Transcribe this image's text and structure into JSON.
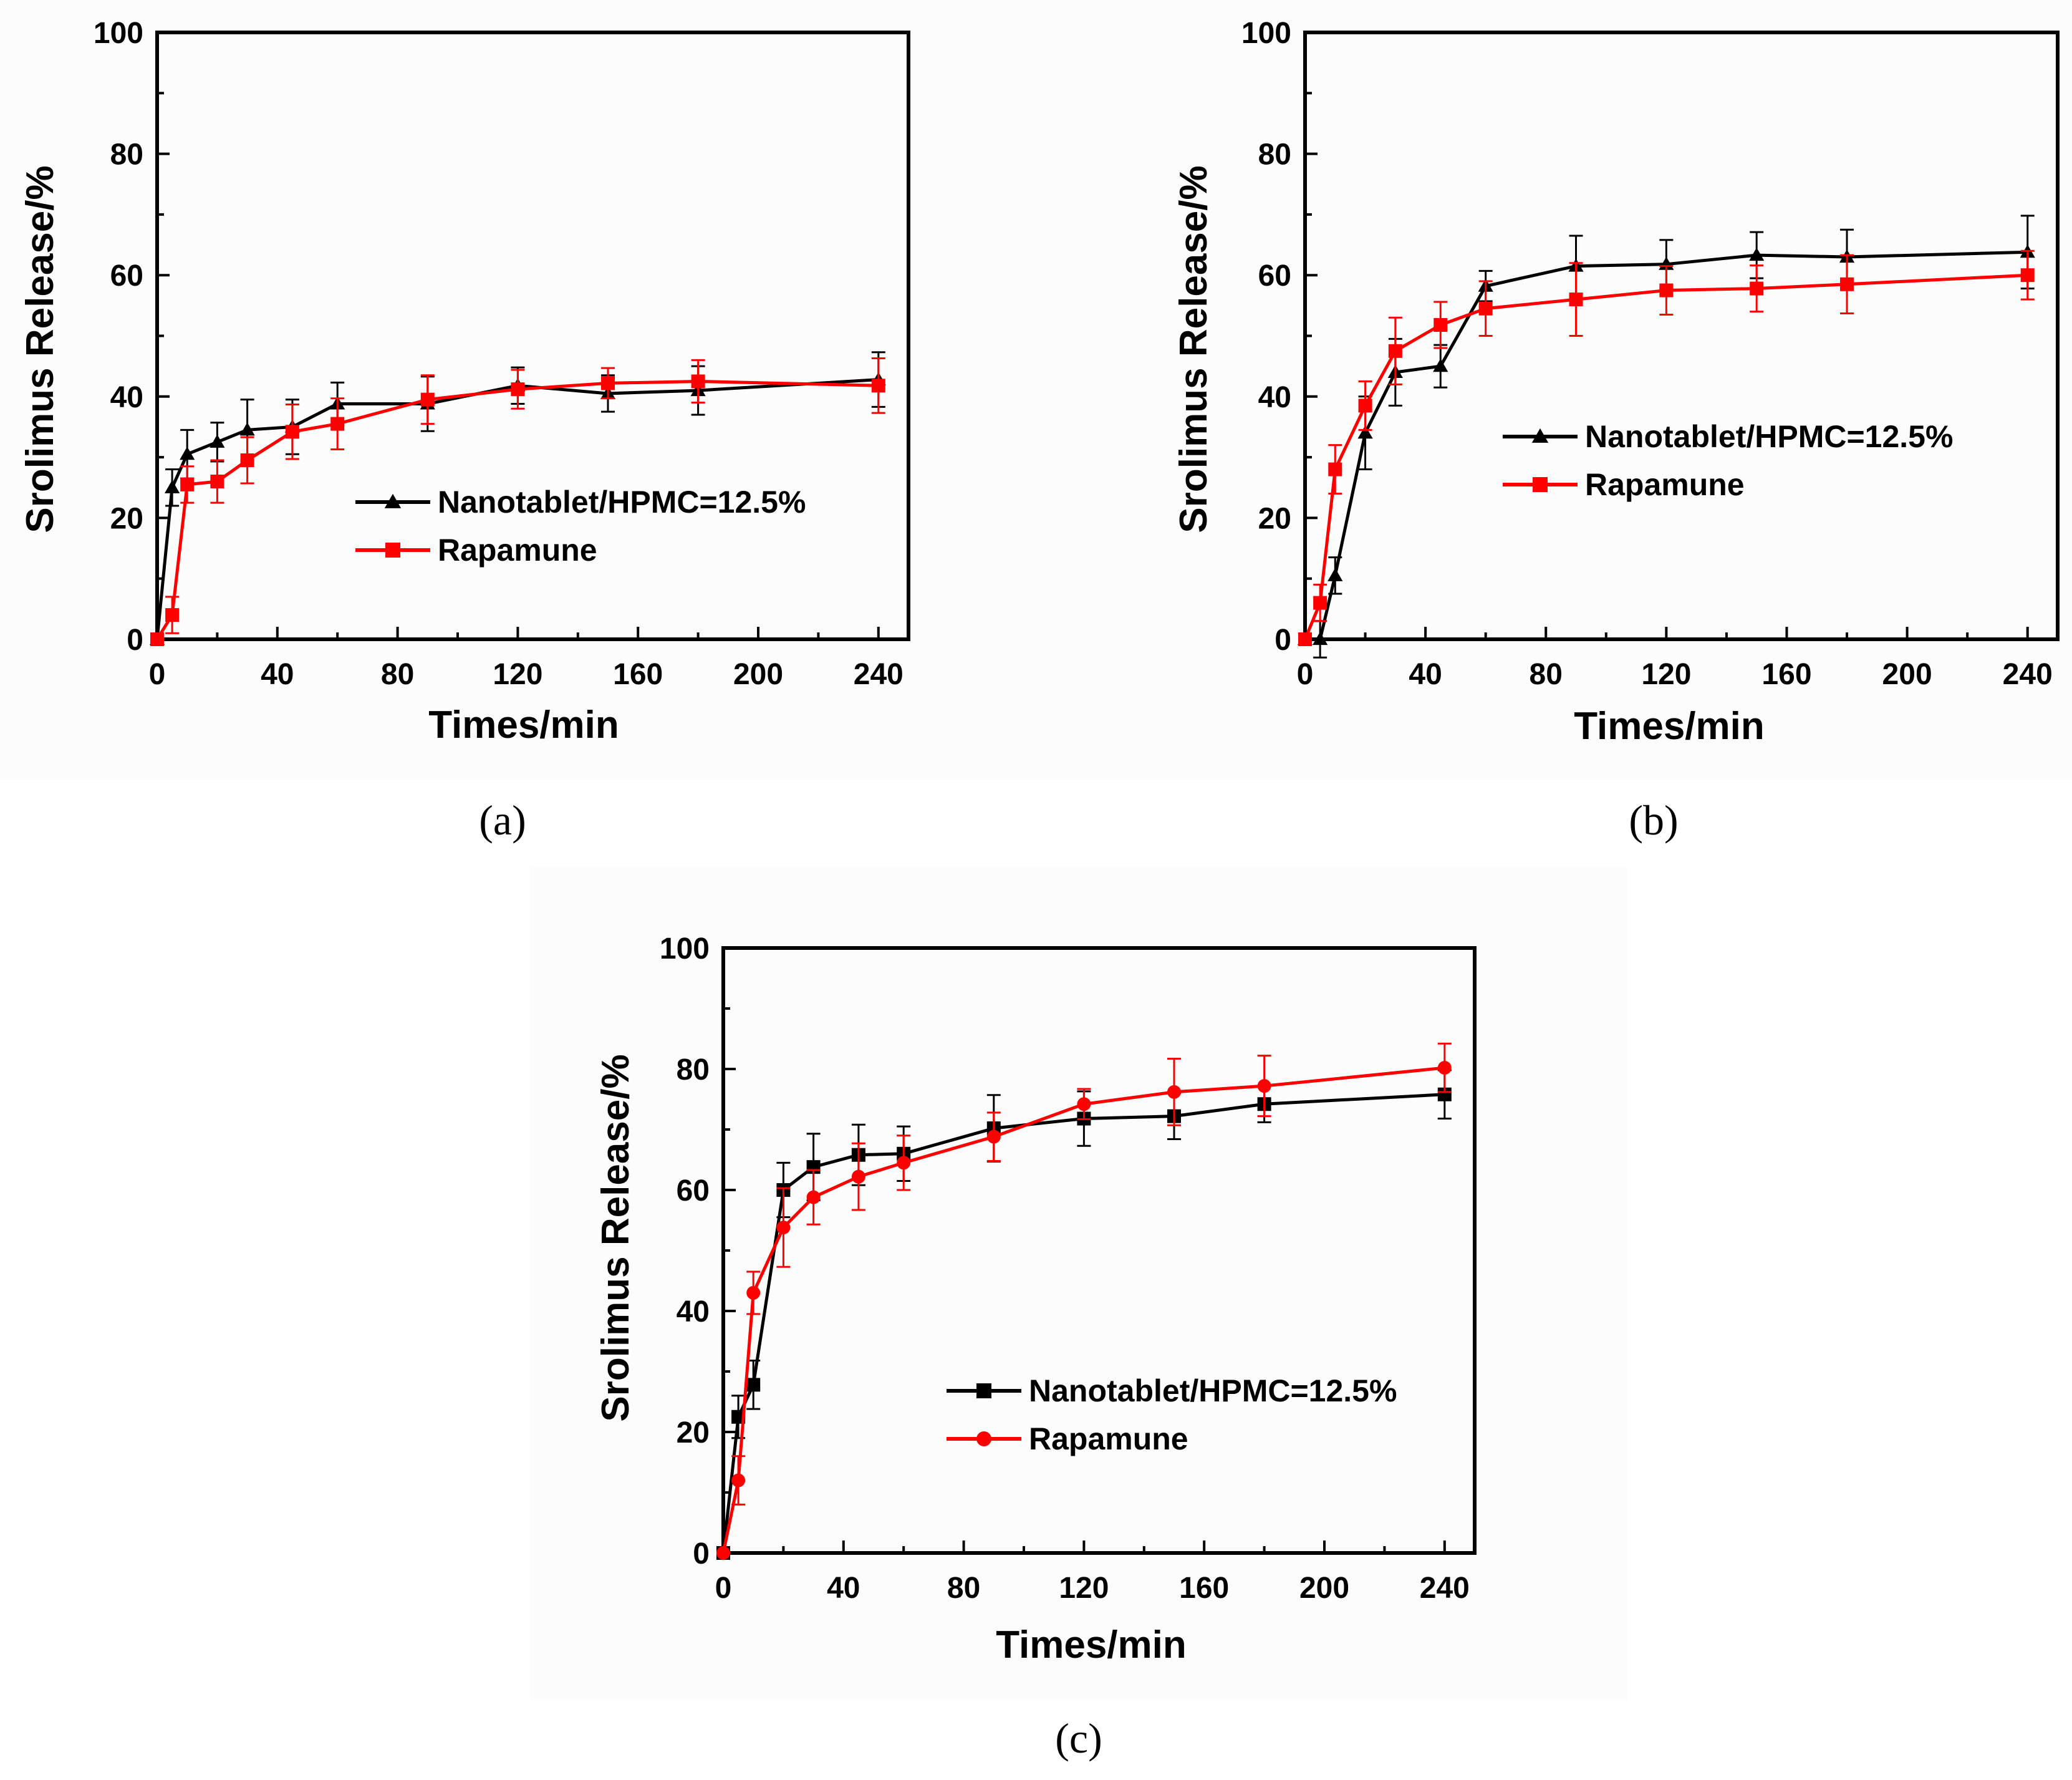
{
  "chart_data": [
    {
      "type": "line",
      "panel_label": "(a)",
      "xlabel": "Times/min",
      "ylabel": "Srolimus Release/%",
      "xlim": [
        0,
        250
      ],
      "ylim": [
        0,
        100
      ],
      "xticks": [
        "0",
        "40",
        "80",
        "120",
        "160",
        "200",
        "240"
      ],
      "yticks": [
        "0",
        "20",
        "40",
        "60",
        "80",
        "100"
      ],
      "legend_position": "center-right",
      "series": [
        {
          "name": "Nanotablet/HPMC=12.5%",
          "color": "#000000",
          "marker": "triangle",
          "x": [
            0,
            5,
            10,
            20,
            30,
            45,
            60,
            90,
            120,
            150,
            180,
            240
          ],
          "y": [
            0,
            25,
            30.5,
            32.5,
            34.5,
            35,
            38.8,
            38.8,
            41.8,
            40.5,
            41,
            42.8
          ],
          "err": [
            0,
            3,
            4,
            3.2,
            5,
            4.5,
            3.5,
            4.5,
            3,
            3,
            4,
            4.5
          ]
        },
        {
          "name": "Rapamune",
          "color": "#ff0000",
          "marker": "square",
          "x": [
            0,
            5,
            10,
            20,
            30,
            45,
            60,
            90,
            120,
            150,
            180,
            240
          ],
          "y": [
            0,
            4,
            25.5,
            26,
            29.5,
            34.2,
            35.5,
            39.5,
            41.2,
            42.2,
            42.5,
            41.8
          ],
          "err": [
            0,
            3,
            3,
            3.5,
            3.8,
            4.5,
            4.2,
            4,
            3.2,
            2.5,
            3.5,
            4.5
          ]
        }
      ]
    },
    {
      "type": "line",
      "panel_label": "(b)",
      "xlabel": "Times/min",
      "ylabel": "Srolimus Release/%",
      "xlim": [
        0,
        250
      ],
      "ylim": [
        0,
        100
      ],
      "xticks": [
        "0",
        "40",
        "80",
        "120",
        "160",
        "200",
        "240"
      ],
      "yticks": [
        "0",
        "20",
        "40",
        "60",
        "80",
        "100"
      ],
      "legend_position": "center-right",
      "series": [
        {
          "name": "Nanotablet/HPMC=12.5%",
          "color": "#000000",
          "marker": "triangle",
          "x": [
            0,
            5,
            10,
            20,
            30,
            45,
            60,
            90,
            120,
            150,
            180,
            240
          ],
          "y": [
            0,
            0,
            10.5,
            34,
            44,
            45,
            58.2,
            61.5,
            61.8,
            63.3,
            63,
            63.8
          ],
          "err": [
            0,
            3,
            3,
            6,
            5.5,
            3.5,
            2.5,
            5,
            4,
            3.8,
            4.5,
            6
          ]
        },
        {
          "name": "Rapamune",
          "color": "#ff0000",
          "marker": "square",
          "x": [
            0,
            5,
            10,
            20,
            30,
            45,
            60,
            90,
            120,
            150,
            180,
            240
          ],
          "y": [
            0,
            6,
            28,
            38.5,
            47.5,
            51.8,
            54.5,
            56,
            57.5,
            57.8,
            58.5,
            60
          ],
          "err": [
            0,
            3,
            4,
            4,
            5.5,
            3.8,
            4.5,
            6,
            4,
            3.8,
            4.8,
            4
          ]
        }
      ]
    },
    {
      "type": "line",
      "panel_label": "(c)",
      "xlabel": "Times/min",
      "ylabel": "Srolimus Release/%",
      "xlim": [
        0,
        250
      ],
      "ylim": [
        0,
        100
      ],
      "xticks": [
        "0",
        "40",
        "80",
        "120",
        "160",
        "200",
        "240"
      ],
      "yticks": [
        "0",
        "20",
        "40",
        "60",
        "80",
        "100"
      ],
      "legend_position": "center-right",
      "series": [
        {
          "name": "Nanotablet/HPMC=12.5%",
          "color": "#000000",
          "marker": "square",
          "x": [
            0,
            5,
            10,
            20,
            30,
            45,
            60,
            90,
            120,
            150,
            180,
            240
          ],
          "y": [
            0,
            22.5,
            27.8,
            60,
            63.8,
            65.8,
            66,
            70.2,
            71.8,
            72.2,
            74.2,
            75.8
          ],
          "err": [
            0,
            3.5,
            4,
            4.5,
            5.5,
            5,
            4.5,
            5.5,
            4.5,
            3.8,
            3,
            4
          ]
        },
        {
          "name": "Rapamune",
          "color": "#ff0000",
          "marker": "circle",
          "x": [
            0,
            5,
            10,
            20,
            30,
            45,
            60,
            90,
            120,
            150,
            180,
            240
          ],
          "y": [
            0,
            12,
            43,
            53.8,
            58.8,
            62.2,
            64.5,
            68.8,
            74.2,
            76.2,
            77.2,
            80.2
          ],
          "err": [
            0,
            4,
            3.5,
            6.5,
            4.5,
            5.5,
            4.5,
            4,
            2.5,
            5.5,
            5,
            4
          ]
        }
      ]
    }
  ]
}
